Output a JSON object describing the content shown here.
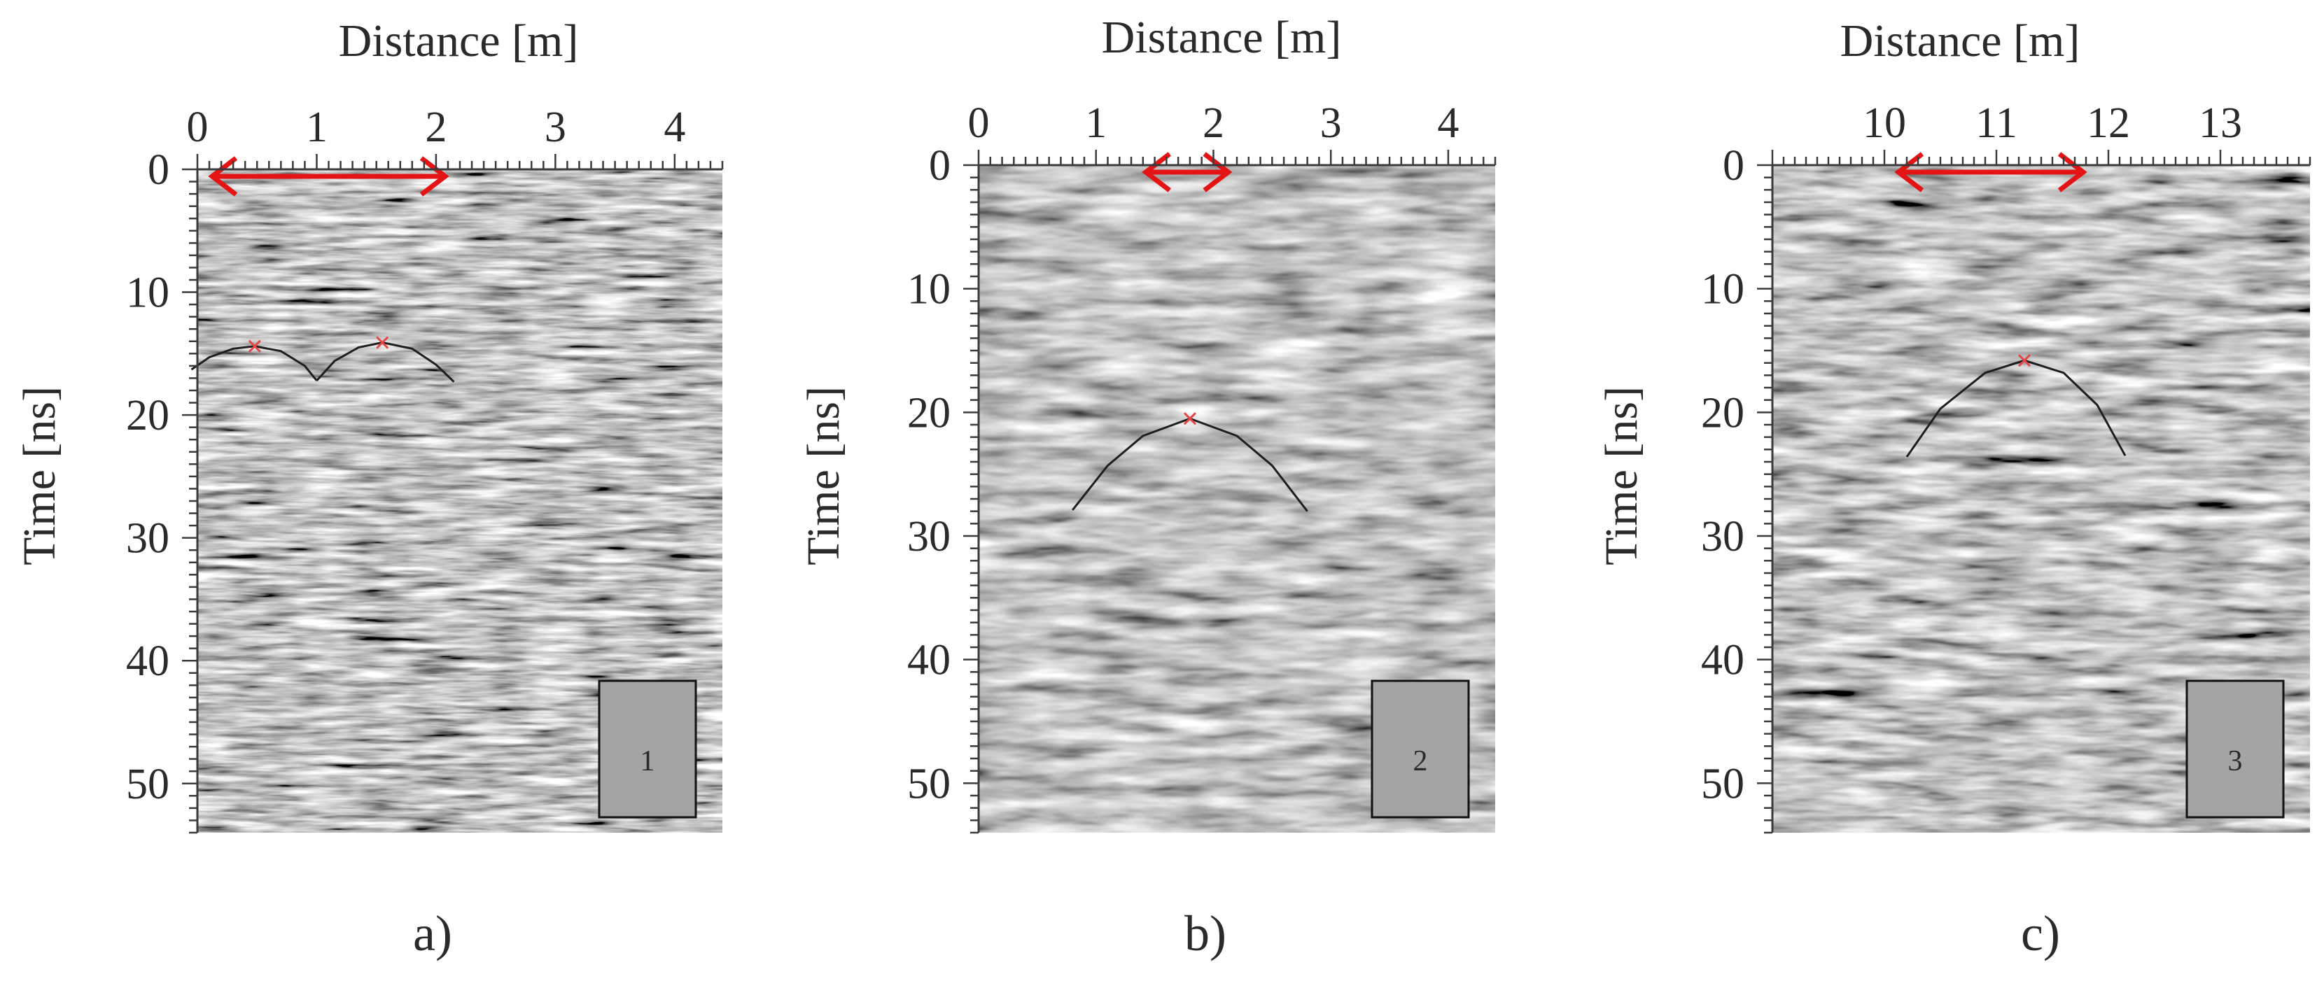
{
  "chart_data": [
    {
      "type": "radargram",
      "panel_caption": "a)",
      "xlabel": "Distance [m]",
      "ylabel": "Time [ns]",
      "xlim": [
        0,
        4.4
      ],
      "ylim": [
        54,
        0
      ],
      "x_ticks": [
        0,
        1,
        2,
        3,
        4
      ],
      "y_ticks": [
        0,
        10,
        20,
        30,
        40,
        50
      ],
      "marker_label": "1",
      "extent_arrow": [
        0.1,
        2.1
      ],
      "hyperbolas": [
        {
          "x": [
            -0.05,
            0.1,
            0.3,
            0.48,
            0.7,
            0.9,
            1.0
          ],
          "t": [
            16.3,
            15.3,
            14.6,
            14.4,
            14.8,
            16.0,
            17.2
          ]
        },
        {
          "x": [
            1.0,
            1.15,
            1.35,
            1.55,
            1.8,
            2.0,
            2.15
          ],
          "t": [
            17.2,
            15.6,
            14.5,
            14.1,
            14.6,
            15.9,
            17.3
          ]
        }
      ],
      "apex_markers": [
        {
          "x": 0.48,
          "t": 14.4
        },
        {
          "x": 1.55,
          "t": 14.1
        }
      ]
    },
    {
      "type": "radargram",
      "panel_caption": "b)",
      "xlabel": "Distance [m]",
      "ylabel": "Time [ns]",
      "xlim": [
        0,
        4.4
      ],
      "ylim": [
        54,
        0
      ],
      "x_ticks": [
        0,
        1,
        2,
        3,
        4
      ],
      "y_ticks": [
        0,
        10,
        20,
        30,
        40,
        50
      ],
      "marker_label": "2",
      "extent_arrow": [
        1.4,
        2.15
      ],
      "hyperbolas": [
        {
          "x": [
            0.8,
            1.1,
            1.4,
            1.8,
            2.2,
            2.5,
            2.8
          ],
          "t": [
            27.9,
            24.3,
            21.9,
            20.5,
            21.9,
            24.3,
            28.0
          ]
        }
      ],
      "apex_markers": [
        {
          "x": 1.8,
          "t": 20.5
        }
      ]
    },
    {
      "type": "radargram",
      "panel_caption": "c)",
      "xlabel": "Distance [m]",
      "ylabel": "Time [ns]",
      "xlim": [
        9.0,
        13.8
      ],
      "ylim": [
        54,
        0
      ],
      "x_ticks": [
        10,
        11,
        12,
        13
      ],
      "y_ticks": [
        0,
        10,
        20,
        30,
        40,
        50
      ],
      "marker_label": "3",
      "extent_arrow": [
        10.1,
        11.8
      ],
      "hyperbolas": [
        {
          "x": [
            10.2,
            10.5,
            10.9,
            11.25,
            11.6,
            11.9,
            12.15
          ],
          "t": [
            23.6,
            19.7,
            16.8,
            15.8,
            16.8,
            19.4,
            23.5
          ]
        }
      ],
      "apex_markers": [
        {
          "x": 11.25,
          "t": 15.8
        }
      ]
    }
  ],
  "colors": {
    "arrow": "#e41414",
    "curve": "#1e1e1e",
    "apex": "#e64646",
    "axis": "#3a3a3a",
    "box_fill": "#a4a4a4",
    "background_gray": "#8c8c8c"
  }
}
